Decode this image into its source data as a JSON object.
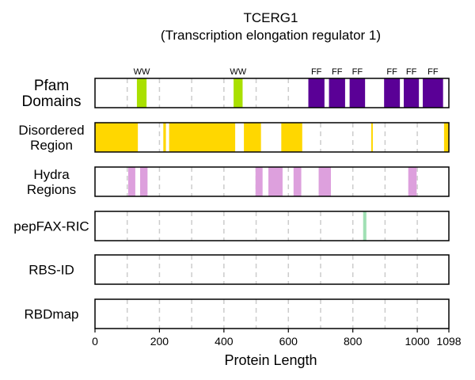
{
  "chart_data": {
    "type": "track",
    "title_line1": "TCERG1",
    "title_line2": "(Transcription elongation regulator 1)",
    "xlabel": "Protein Length",
    "protein_length": 1098,
    "xlim": [
      0,
      1098
    ],
    "x_ticks": [
      0,
      200,
      400,
      600,
      800,
      1000,
      1098
    ],
    "x_tick_labels": [
      "0",
      "200",
      "400",
      "600",
      "800",
      "1000",
      "1098"
    ],
    "grid_lines": [
      100,
      200,
      300,
      400,
      500,
      600,
      700,
      800,
      900,
      1000
    ],
    "grid": true,
    "tracks": [
      {
        "name_lines": [
          "Pfam",
          "Domains"
        ],
        "color": "#76009e",
        "segments": [
          {
            "start": 130,
            "end": 160,
            "label": "WW",
            "color": "#a9e000"
          },
          {
            "start": 430,
            "end": 458,
            "label": "WW",
            "color": "#a9e000"
          },
          {
            "start": 662,
            "end": 712,
            "label": "FF",
            "color": "#5a0096"
          },
          {
            "start": 726,
            "end": 776,
            "label": "FF",
            "color": "#5a0096"
          },
          {
            "start": 790,
            "end": 838,
            "label": "FF",
            "color": "#5a0096"
          },
          {
            "start": 897,
            "end": 946,
            "label": "FF",
            "color": "#5a0096"
          },
          {
            "start": 958,
            "end": 1005,
            "label": "FF",
            "color": "#5a0096"
          },
          {
            "start": 1017,
            "end": 1080,
            "label": "FF",
            "color": "#5a0096"
          }
        ]
      },
      {
        "name_lines": [
          "Disordered",
          "Region"
        ],
        "color": "#ffd700",
        "segments": [
          {
            "start": 0,
            "end": 133
          },
          {
            "start": 212,
            "end": 220
          },
          {
            "start": 230,
            "end": 435
          },
          {
            "start": 462,
            "end": 515
          },
          {
            "start": 578,
            "end": 643
          },
          {
            "start": 857,
            "end": 862
          },
          {
            "start": 1083,
            "end": 1098
          }
        ]
      },
      {
        "name_lines": [
          "Hydra",
          "Regions"
        ],
        "color": "#dda0dd",
        "segments": [
          {
            "start": 103,
            "end": 125
          },
          {
            "start": 140,
            "end": 163
          },
          {
            "start": 498,
            "end": 520
          },
          {
            "start": 538,
            "end": 582
          },
          {
            "start": 616,
            "end": 640
          },
          {
            "start": 694,
            "end": 732
          },
          {
            "start": 972,
            "end": 998
          }
        ]
      },
      {
        "name_lines": [
          "pepFAX-RIC"
        ],
        "color": "#a0e0b4",
        "segments": [
          {
            "start": 832,
            "end": 842
          }
        ]
      },
      {
        "name_lines": [
          "RBS-ID"
        ],
        "color": "#888888",
        "segments": []
      },
      {
        "name_lines": [
          "RBDmap"
        ],
        "color": "#888888",
        "segments": []
      }
    ]
  }
}
